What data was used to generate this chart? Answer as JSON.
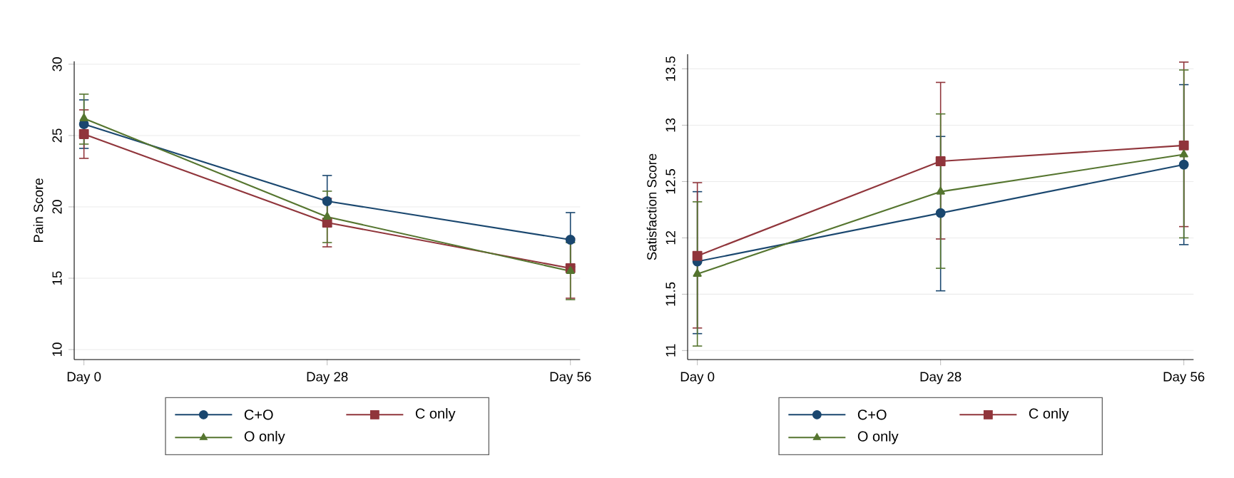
{
  "chart_data": [
    {
      "type": "line",
      "ylabel": "Pain Score",
      "categories": [
        "Day 0",
        "Day 28",
        "Day 56"
      ],
      "ylim": [
        9.3,
        30.2
      ],
      "yticks": [
        10,
        15,
        20,
        25,
        30
      ],
      "grid": "y",
      "legend": "bottom",
      "series": [
        {
          "name": "C+O",
          "color": "#1a476f",
          "marker": "circle",
          "values": [
            25.8,
            20.4,
            17.7
          ],
          "errors": [
            [
              24.1,
              27.5
            ],
            [
              18.6,
              22.2
            ],
            [
              15.8,
              19.6
            ]
          ]
        },
        {
          "name": "C only",
          "color": "#90353b",
          "marker": "square",
          "values": [
            25.1,
            18.9,
            15.7
          ],
          "errors": [
            [
              23.4,
              26.8
            ],
            [
              17.2,
              20.6
            ],
            [
              13.6,
              17.8
            ]
          ]
        },
        {
          "name": "O only",
          "color": "#55752f",
          "marker": "triangle",
          "values": [
            26.2,
            19.3,
            15.5
          ],
          "errors": [
            [
              24.4,
              27.9
            ],
            [
              17.5,
              21.1
            ],
            [
              13.5,
              17.5
            ]
          ]
        }
      ]
    },
    {
      "type": "line",
      "ylabel": "Satisfaction Score",
      "categories": [
        "Day 0",
        "Day 28",
        "Day 56"
      ],
      "ylim": [
        10.92,
        13.63
      ],
      "yticks": [
        11,
        11.5,
        12,
        12.5,
        13,
        13.5
      ],
      "grid": "y",
      "legend": "bottom",
      "series": [
        {
          "name": "C+O",
          "color": "#1a476f",
          "marker": "circle",
          "values": [
            11.79,
            12.22,
            12.65
          ],
          "errors": [
            [
              11.15,
              12.41
            ],
            [
              11.53,
              12.9
            ],
            [
              11.94,
              13.36
            ]
          ]
        },
        {
          "name": "C only",
          "color": "#90353b",
          "marker": "square",
          "values": [
            11.84,
            12.68,
            12.82
          ],
          "errors": [
            [
              11.2,
              12.49
            ],
            [
              11.99,
              13.38
            ],
            [
              12.1,
              13.56
            ]
          ]
        },
        {
          "name": "O only",
          "color": "#55752f",
          "marker": "triangle",
          "values": [
            11.68,
            12.41,
            12.74
          ],
          "errors": [
            [
              11.04,
              12.32
            ],
            [
              11.73,
              13.1
            ],
            [
              12.0,
              13.49
            ]
          ]
        }
      ]
    }
  ]
}
